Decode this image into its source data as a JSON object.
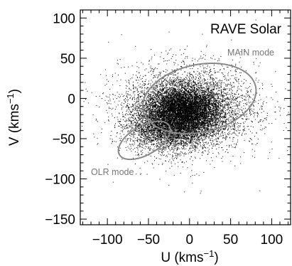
{
  "chart_data": {
    "type": "scatter",
    "title": "RAVE Solar",
    "xlabel": "U (kms",
    "ylabel": "V (kms",
    "unit_superscript": "−1",
    "xlim": [
      -133,
      123
    ],
    "ylim": [
      -157,
      110
    ],
    "xticks": [
      -100,
      -50,
      0,
      50,
      100
    ],
    "yticks": [
      -150,
      -100,
      -50,
      0,
      50,
      100
    ],
    "xtick_labels": [
      "−100",
      "−50",
      "0",
      "50",
      "100"
    ],
    "ytick_labels": [
      "−150",
      "−100",
      "−50",
      "0",
      "50",
      "100"
    ],
    "minor_tick_step": 10,
    "point_color": "#000000",
    "ellipse_color": "#888888",
    "point_clusters": [
      {
        "center": [
          -8,
          -14
        ],
        "spread": [
          38,
          24
        ],
        "count": 7000
      },
      {
        "center": [
          -25,
          -38
        ],
        "spread": [
          42,
          22
        ],
        "count": 2600
      },
      {
        "center": [
          0,
          -10
        ],
        "spread": [
          70,
          42
        ],
        "count": 3200
      },
      {
        "center": [
          -10,
          -20
        ],
        "spread": [
          62,
          52
        ],
        "count": 1200
      }
    ],
    "ellipses": [
      {
        "name": "MAIN mode",
        "center": [
          12,
          0
        ],
        "semi_axes": [
          70,
          42
        ],
        "rotation_deg": 12
      },
      {
        "name": "OLR mode",
        "center": [
          -55,
          -52
        ],
        "semi_axes": [
          35,
          18
        ],
        "rotation_deg": 30
      }
    ],
    "annotations": [
      "MAIN mode",
      "OLR mode"
    ],
    "grid": false,
    "legend": "none"
  }
}
